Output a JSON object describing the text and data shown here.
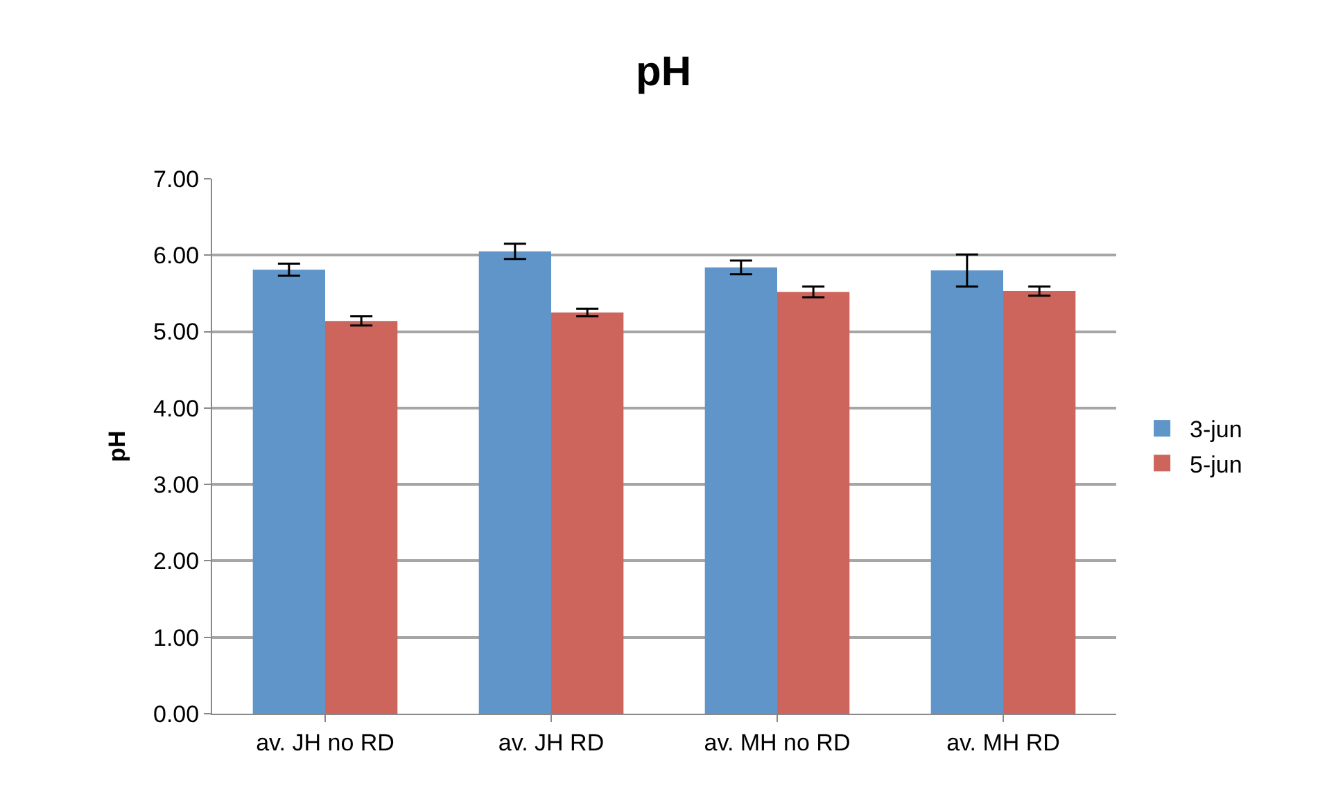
{
  "chart_data": {
    "type": "bar",
    "title": "pH",
    "ylabel": "pH",
    "categories": [
      "av. JH no RD",
      "av. JH RD",
      "av. MH no RD",
      "av. MH RD"
    ],
    "series": [
      {
        "name": "3-jun",
        "color": "#5f95c9",
        "values": [
          5.81,
          6.05,
          5.84,
          5.8
        ],
        "errors": [
          0.08,
          0.1,
          0.09,
          0.21
        ]
      },
      {
        "name": "5-jun",
        "color": "#cd655d",
        "values": [
          5.14,
          5.25,
          5.52,
          5.53
        ],
        "errors": [
          0.06,
          0.05,
          0.07,
          0.06
        ]
      }
    ],
    "ylim": [
      0,
      7
    ],
    "yticks": [
      {
        "value": 0,
        "label": "0.00"
      },
      {
        "value": 1,
        "label": "1.00"
      },
      {
        "value": 2,
        "label": "2.00"
      },
      {
        "value": 3,
        "label": "3.00"
      },
      {
        "value": 4,
        "label": "4.00"
      },
      {
        "value": 5,
        "label": "5.00"
      },
      {
        "value": 6,
        "label": "6.00"
      },
      {
        "value": 7,
        "label": "7.00"
      }
    ],
    "grid": "y",
    "legend": "right"
  }
}
